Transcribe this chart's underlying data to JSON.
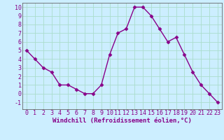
{
  "x": [
    0,
    1,
    2,
    3,
    4,
    5,
    6,
    7,
    8,
    9,
    10,
    11,
    12,
    13,
    14,
    15,
    16,
    17,
    18,
    19,
    20,
    21,
    22,
    23
  ],
  "y": [
    5,
    4,
    3,
    2.5,
    1,
    1,
    0.5,
    0,
    0,
    1,
    4.5,
    7,
    7.5,
    10,
    10,
    9,
    7.5,
    6,
    6.5,
    4.5,
    2.5,
    1,
    0,
    -1
  ],
  "line_color": "#880088",
  "marker": "D",
  "marker_size": 2.5,
  "bg_color": "#cceeff",
  "grid_color": "#aaddcc",
  "xlabel": "Windchill (Refroidissement éolien,°C)",
  "ylabel_ticks": [
    -1,
    0,
    1,
    2,
    3,
    4,
    5,
    6,
    7,
    8,
    9,
    10
  ],
  "xlim": [
    -0.5,
    23.5
  ],
  "ylim": [
    -1.8,
    10.5
  ],
  "xlabel_fontsize": 6.5,
  "tick_fontsize": 6.0,
  "line_width": 1.0,
  "spine_color": "#666666"
}
